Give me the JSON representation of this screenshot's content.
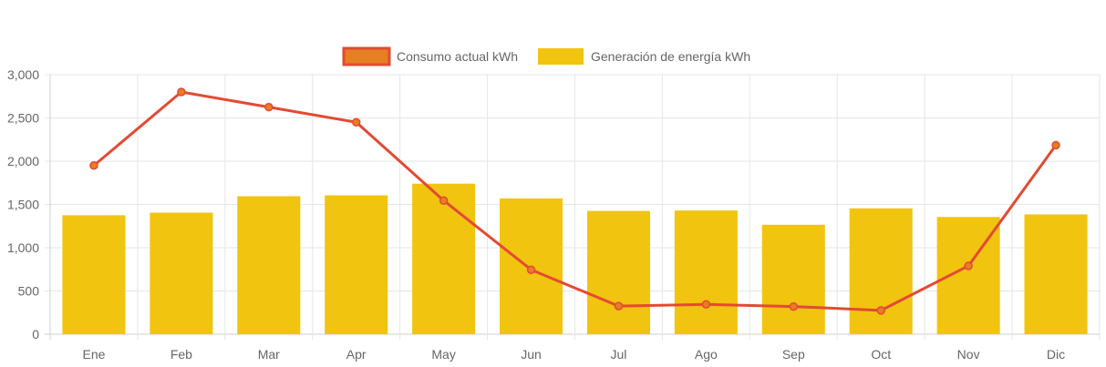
{
  "chart_data": {
    "type": "bar",
    "categories": [
      "Ene",
      "Feb",
      "Mar",
      "Apr",
      "May",
      "Jun",
      "Jul",
      "Ago",
      "Sep",
      "Oct",
      "Nov",
      "Dic"
    ],
    "series": [
      {
        "name": "Consumo actual kWh",
        "type": "line",
        "color": "#e34a33",
        "point_color": "#e67e22",
        "values": [
          1950,
          2800,
          2625,
          2450,
          1545,
          745,
          325,
          345,
          320,
          275,
          790,
          2185
        ]
      },
      {
        "name": "Generación de energía kWh",
        "type": "bar",
        "color": "#f1c40f",
        "values": [
          1375,
          1405,
          1595,
          1605,
          1740,
          1570,
          1425,
          1430,
          1265,
          1455,
          1355,
          1385
        ]
      }
    ],
    "y_ticks": [
      "0",
      "500",
      "1,000",
      "1,500",
      "2,000",
      "2,500",
      "3,000"
    ],
    "ylim": [
      0,
      3000
    ],
    "grid": true,
    "legend_position": "top-center"
  }
}
